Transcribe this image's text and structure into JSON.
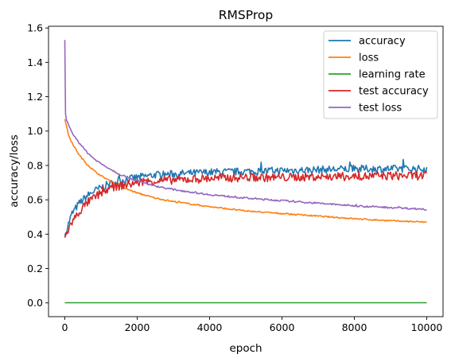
{
  "chart_data": {
    "type": "line",
    "title": "RMSProp",
    "xlabel": "epoch",
    "ylabel": "accuracy/loss",
    "xlim": [
      -450,
      10450
    ],
    "ylim": [
      -0.08,
      1.61
    ],
    "xticks": [
      0,
      2000,
      4000,
      6000,
      8000,
      10000
    ],
    "yticks": [
      0.0,
      0.2,
      0.4,
      0.6,
      0.8,
      1.0,
      1.2,
      1.4,
      1.6
    ],
    "xtick_labels": [
      "0",
      "2000",
      "4000",
      "6000",
      "8000",
      "10000"
    ],
    "ytick_labels": [
      "0.0",
      "0.2",
      "0.4",
      "0.6",
      "0.8",
      "1.0",
      "1.2",
      "1.4",
      "1.6"
    ],
    "grid": false,
    "legend_position": "top-right",
    "series": [
      {
        "name": "accuracy",
        "color": "#1f77b4",
        "noise": 0.022,
        "x": [
          0,
          100,
          200,
          400,
          600,
          800,
          1000,
          1200,
          1500,
          2000,
          2500,
          3000,
          4000,
          5000,
          6000,
          7000,
          8000,
          9000,
          10000
        ],
        "y": [
          0.39,
          0.46,
          0.52,
          0.58,
          0.62,
          0.65,
          0.67,
          0.69,
          0.71,
          0.73,
          0.745,
          0.75,
          0.76,
          0.765,
          0.77,
          0.775,
          0.78,
          0.78,
          0.78
        ]
      },
      {
        "name": "loss",
        "color": "#ff7f0e",
        "noise": 0.004,
        "x": [
          0,
          100,
          200,
          400,
          600,
          800,
          1000,
          1500,
          2000,
          2500,
          3000,
          4000,
          5000,
          6000,
          7000,
          8000,
          9000,
          10000
        ],
        "y": [
          1.07,
          0.98,
          0.93,
          0.86,
          0.81,
          0.77,
          0.74,
          0.68,
          0.64,
          0.61,
          0.59,
          0.56,
          0.535,
          0.52,
          0.505,
          0.49,
          0.478,
          0.47
        ]
      },
      {
        "name": "learning rate",
        "color": "#2ca02c",
        "noise": 0,
        "x": [
          0,
          10000
        ],
        "y": [
          0.001,
          0.001
        ]
      },
      {
        "name": "test accuracy",
        "color": "#d62728",
        "noise": 0.025,
        "x": [
          0,
          100,
          200,
          400,
          600,
          800,
          1000,
          1200,
          1500,
          2000,
          2500,
          3000,
          4000,
          5000,
          6000,
          7000,
          8000,
          9000,
          10000
        ],
        "y": [
          0.38,
          0.43,
          0.47,
          0.53,
          0.58,
          0.61,
          0.64,
          0.66,
          0.68,
          0.7,
          0.71,
          0.715,
          0.725,
          0.73,
          0.73,
          0.735,
          0.735,
          0.74,
          0.74
        ]
      },
      {
        "name": "test loss",
        "color": "#9467bd",
        "noise": 0.005,
        "x": [
          0,
          20,
          50,
          100,
          200,
          400,
          600,
          800,
          1000,
          1500,
          2000,
          2500,
          3000,
          4000,
          5000,
          6000,
          7000,
          8000,
          9000,
          10000
        ],
        "y": [
          1.53,
          1.1,
          1.06,
          1.04,
          0.99,
          0.93,
          0.88,
          0.84,
          0.81,
          0.75,
          0.71,
          0.68,
          0.66,
          0.63,
          0.61,
          0.595,
          0.58,
          0.565,
          0.555,
          0.545
        ]
      }
    ]
  }
}
